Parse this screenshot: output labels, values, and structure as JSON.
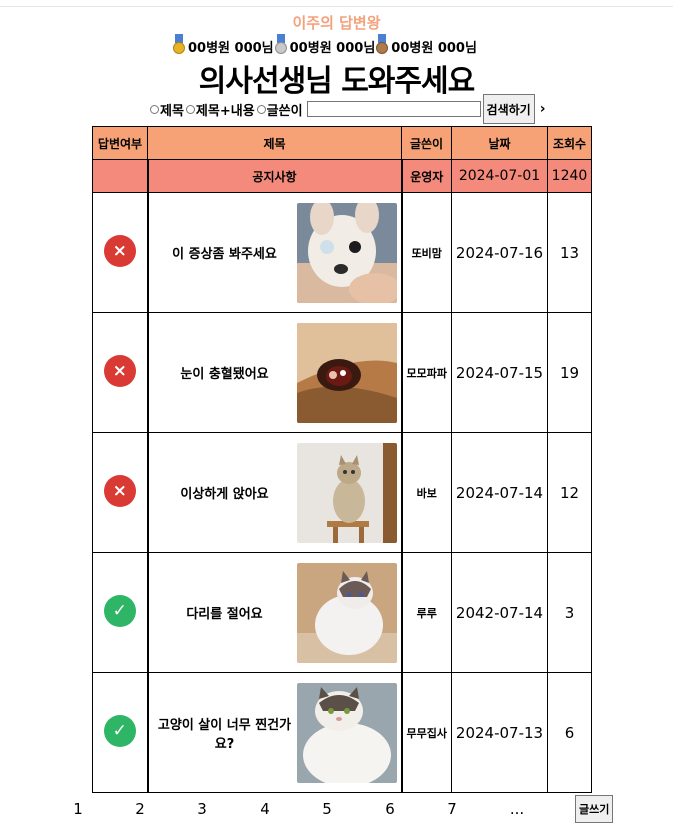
{
  "weekly": {
    "title": "이주의 답변왕"
  },
  "medals": [
    {
      "icon": "gold-medal-icon",
      "name": "00병원 000님"
    },
    {
      "icon": "silver-medal-icon",
      "name": "00병원 000님"
    },
    {
      "icon": "bronze-medal-icon",
      "name": "00병원 000님"
    }
  ],
  "page": {
    "title": "의사선생님 도와주세요"
  },
  "search": {
    "options": [
      "제목",
      "제목+내용",
      "글쓴이"
    ],
    "button": "검색하기",
    "arrow": "›"
  },
  "table": {
    "headers": [
      "답변여부",
      "제목",
      "글쓴이",
      "날짜",
      "조회수"
    ],
    "notice": {
      "title": "공지사항",
      "writer": "운영자",
      "date": "2024-07-01",
      "views": "1240"
    },
    "rows": [
      {
        "answered": false,
        "status_icon": "×",
        "title": "이 증상좀 봐주세요",
        "thumb": "chihuahua-eye-photo",
        "writer": "또비맘",
        "date": "2024-07-16",
        "views": "13"
      },
      {
        "answered": false,
        "status_icon": "×",
        "title": "눈이 충혈됐어요",
        "thumb": "dog-red-eye-photo",
        "writer": "모모파파",
        "date": "2024-07-15",
        "views": "19"
      },
      {
        "answered": false,
        "status_icon": "×",
        "title": "이상하게 앉아요",
        "thumb": "cat-sitting-photo",
        "writer": "바보",
        "date": "2024-07-14",
        "views": "12"
      },
      {
        "answered": true,
        "status_icon": "✓",
        "title": "다리를 절어요",
        "thumb": "ragdoll-cat-photo",
        "writer": "루루",
        "date": "2042-07-14",
        "views": "3"
      },
      {
        "answered": true,
        "status_icon": "✓",
        "title": "고양이 살이 너무 찐건가요?",
        "thumb": "fat-cat-photo",
        "writer": "무무집사",
        "date": "2024-07-13",
        "views": "6"
      }
    ]
  },
  "pagination": [
    "1",
    "2",
    "3",
    "4",
    "5",
    "6",
    "7",
    "..."
  ],
  "write_button": "글쓰기",
  "colors": {
    "header": "#f6a176",
    "notice": "#f48a7b",
    "accent": "#f4a27c",
    "no": "#d93a33",
    "yes": "#2fb566"
  }
}
